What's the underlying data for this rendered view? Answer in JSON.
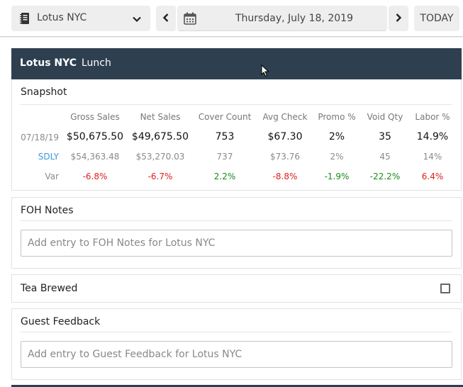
{
  "topbar": {
    "location_select": {
      "icon": "notebook-icon",
      "value": "Lotus NYC",
      "chevron": "chevron-down-icon"
    },
    "prev_icon": "chevron-left-icon",
    "next_icon": "chevron-right-icon",
    "calendar_icon": "calendar-icon",
    "date": "Thursday, July 18, 2019",
    "today_label": "TODAY"
  },
  "header": {
    "location": "Lotus NYC",
    "meal_period": "Lunch",
    "color": "#2e3f50"
  },
  "snapshot": {
    "title": "Snapshot",
    "columns": [
      "Gross Sales",
      "Net Sales",
      "Cover Count",
      "Avg Check",
      "Promo %",
      "Void Qty",
      "Labor %"
    ],
    "rows": {
      "current": {
        "label": "07/18/19",
        "values": [
          "$50,675.50",
          "$49,675.50",
          "753",
          "$67.30",
          "2%",
          "35",
          "14.9%"
        ]
      },
      "sdly": {
        "label": "SDLY",
        "values": [
          "$54,363.48",
          "$53,270.03",
          "737",
          "$73.76",
          "2%",
          "45",
          "14%"
        ]
      },
      "var": {
        "label": "Var",
        "values": [
          "-6.8%",
          "-6.7%",
          "2.2%",
          "-8.8%",
          "-1.9%",
          "-22.2%",
          "6.4%"
        ],
        "status": [
          "neg",
          "neg",
          "pos",
          "neg",
          "pos",
          "pos",
          "neg"
        ]
      }
    },
    "colors": {
      "negative": "#e0201e",
      "positive": "#1a8a1a",
      "sdly_link": "#3a9bd8"
    }
  },
  "foh_notes": {
    "title": "FOH Notes",
    "placeholder": "Add entry to FOH Notes for Lotus NYC",
    "value": ""
  },
  "tea_brewed": {
    "title": "Tea Brewed",
    "checked": false
  },
  "guest_feedback": {
    "title": "Guest Feedback",
    "placeholder": "Add entry to Guest Feedback for Lotus NYC",
    "value": ""
  }
}
